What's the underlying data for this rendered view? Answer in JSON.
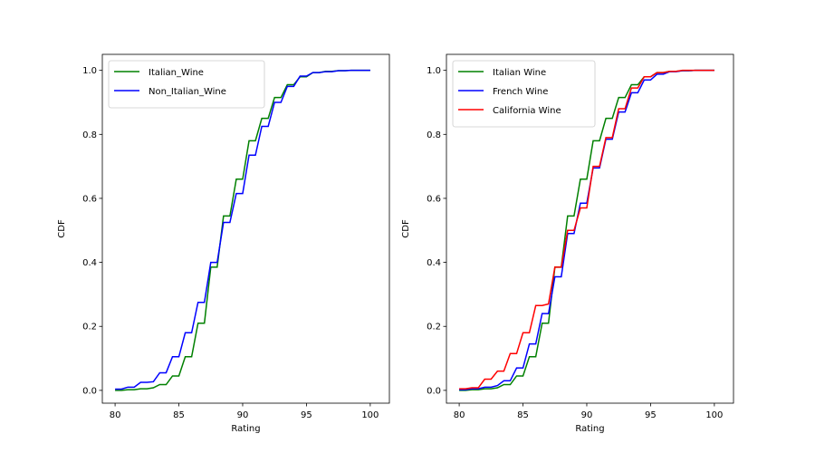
{
  "chart_data": [
    {
      "type": "line",
      "title": "",
      "xlabel": "Rating",
      "ylabel": "CDF",
      "xlim": [
        79,
        101.5
      ],
      "ylim": [
        -0.04,
        1.05
      ],
      "xticks": [
        80,
        85,
        90,
        95,
        100
      ],
      "yticks": [
        0.0,
        0.2,
        0.4,
        0.6,
        0.8,
        1.0
      ],
      "xtick_labels": [
        "80",
        "85",
        "90",
        "95",
        "100"
      ],
      "ytick_labels": [
        "0.0",
        "0.2",
        "0.4",
        "0.6",
        "0.8",
        "1.0"
      ],
      "grid": false,
      "legend_position": "top-left",
      "x": [
        80,
        80.5,
        81,
        81.5,
        82,
        82.5,
        83,
        83.5,
        84,
        84.5,
        85,
        85.5,
        86,
        86.5,
        87,
        87.5,
        88,
        88.5,
        89,
        89.5,
        90,
        90.5,
        91,
        91.5,
        92,
        92.5,
        93,
        93.5,
        94,
        94.5,
        95,
        95.5,
        96,
        96.5,
        97,
        97.5,
        98,
        98.5,
        99,
        99.5,
        100
      ],
      "series": [
        {
          "name": "Italian_Wine",
          "color": "#008000",
          "values": [
            0.0,
            0.0,
            0.002,
            0.002,
            0.005,
            0.005,
            0.008,
            0.018,
            0.018,
            0.045,
            0.045,
            0.105,
            0.105,
            0.21,
            0.21,
            0.385,
            0.385,
            0.545,
            0.545,
            0.66,
            0.66,
            0.78,
            0.78,
            0.85,
            0.85,
            0.915,
            0.915,
            0.955,
            0.955,
            0.98,
            0.98,
            0.993,
            0.993,
            0.997,
            0.997,
            0.999,
            0.999,
            1.0,
            1.0,
            1.0,
            1.0
          ]
        },
        {
          "name": "Non_Italian_Wine",
          "color": "#0000ff",
          "values": [
            0.004,
            0.004,
            0.01,
            0.01,
            0.025,
            0.025,
            0.027,
            0.055,
            0.055,
            0.105,
            0.105,
            0.18,
            0.18,
            0.275,
            0.275,
            0.4,
            0.4,
            0.525,
            0.525,
            0.615,
            0.615,
            0.735,
            0.735,
            0.825,
            0.825,
            0.9,
            0.9,
            0.95,
            0.95,
            0.982,
            0.982,
            0.993,
            0.993,
            0.996,
            0.996,
            0.999,
            0.999,
            1.0,
            1.0,
            1.0,
            1.0
          ]
        }
      ]
    },
    {
      "type": "line",
      "title": "",
      "xlabel": "Rating",
      "ylabel": "CDF",
      "xlim": [
        79,
        101.5
      ],
      "ylim": [
        -0.04,
        1.05
      ],
      "xticks": [
        80,
        85,
        90,
        95,
        100
      ],
      "yticks": [
        0.0,
        0.2,
        0.4,
        0.6,
        0.8,
        1.0
      ],
      "xtick_labels": [
        "80",
        "85",
        "90",
        "95",
        "100"
      ],
      "ytick_labels": [
        "0.0",
        "0.2",
        "0.4",
        "0.6",
        "0.8",
        "1.0"
      ],
      "grid": false,
      "legend_position": "top-left",
      "x": [
        80,
        80.5,
        81,
        81.5,
        82,
        82.5,
        83,
        83.5,
        84,
        84.5,
        85,
        85.5,
        86,
        86.5,
        87,
        87.5,
        88,
        88.5,
        89,
        89.5,
        90,
        90.5,
        91,
        91.5,
        92,
        92.5,
        93,
        93.5,
        94,
        94.5,
        95,
        95.5,
        96,
        96.5,
        97,
        97.5,
        98,
        98.5,
        99,
        99.5,
        100
      ],
      "series": [
        {
          "name": "Italian Wine",
          "color": "#008000",
          "values": [
            0.0,
            0.0,
            0.002,
            0.002,
            0.005,
            0.005,
            0.008,
            0.018,
            0.018,
            0.045,
            0.045,
            0.105,
            0.105,
            0.21,
            0.21,
            0.385,
            0.385,
            0.545,
            0.545,
            0.66,
            0.66,
            0.78,
            0.78,
            0.85,
            0.85,
            0.915,
            0.915,
            0.955,
            0.955,
            0.98,
            0.98,
            0.993,
            0.993,
            0.997,
            0.997,
            0.999,
            0.999,
            1.0,
            1.0,
            1.0,
            1.0
          ]
        },
        {
          "name": "French Wine",
          "color": "#0000ff",
          "values": [
            0.002,
            0.002,
            0.005,
            0.005,
            0.01,
            0.01,
            0.015,
            0.03,
            0.03,
            0.07,
            0.07,
            0.145,
            0.145,
            0.24,
            0.24,
            0.355,
            0.355,
            0.49,
            0.49,
            0.585,
            0.585,
            0.695,
            0.695,
            0.785,
            0.785,
            0.87,
            0.87,
            0.93,
            0.93,
            0.97,
            0.97,
            0.988,
            0.988,
            0.996,
            0.996,
            0.999,
            0.999,
            1.0,
            1.0,
            1.0,
            1.0
          ]
        },
        {
          "name": "California Wine",
          "color": "#ff0000",
          "values": [
            0.005,
            0.005,
            0.008,
            0.008,
            0.035,
            0.035,
            0.06,
            0.06,
            0.115,
            0.115,
            0.18,
            0.18,
            0.265,
            0.265,
            0.27,
            0.385,
            0.385,
            0.5,
            0.5,
            0.57,
            0.57,
            0.7,
            0.7,
            0.79,
            0.79,
            0.88,
            0.88,
            0.945,
            0.945,
            0.98,
            0.98,
            0.993,
            0.993,
            0.997,
            0.997,
            1.0,
            1.0,
            1.0,
            1.0,
            1.0,
            1.0
          ]
        }
      ]
    }
  ]
}
